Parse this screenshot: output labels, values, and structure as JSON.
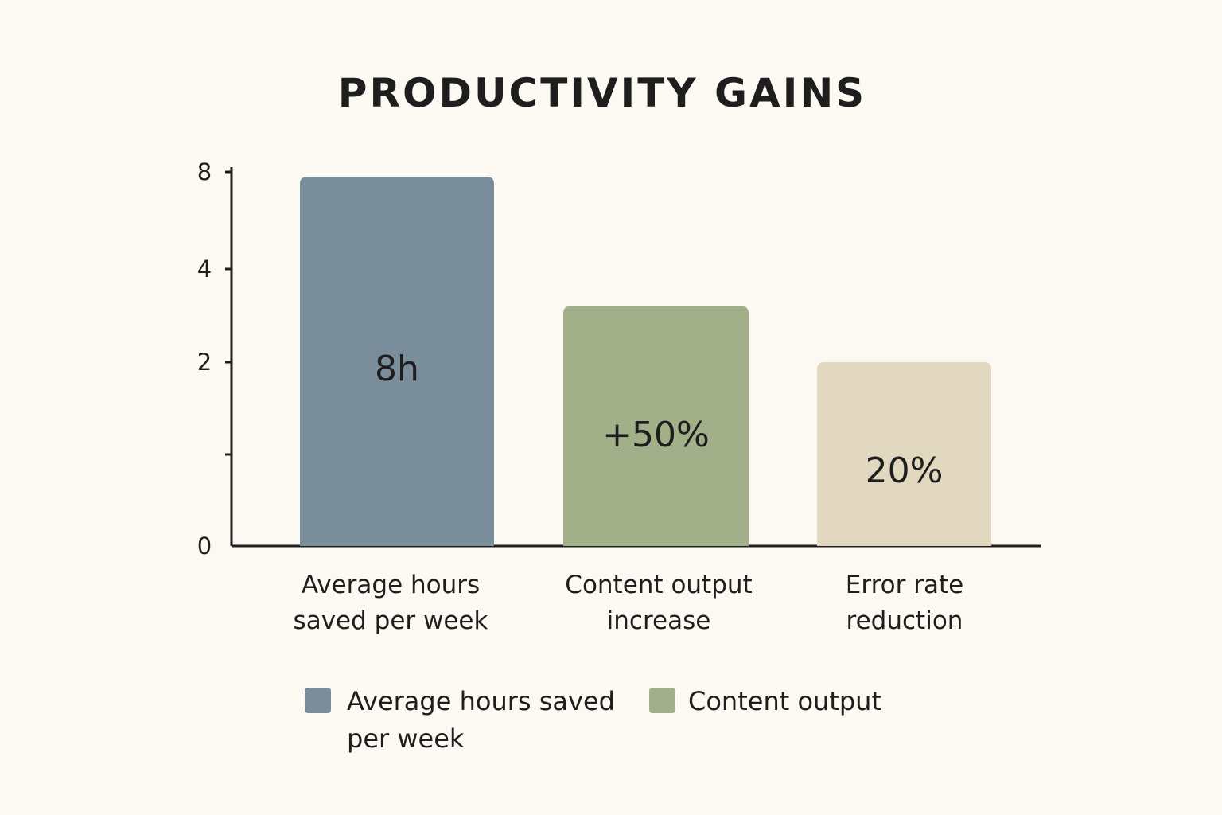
{
  "chart_data": {
    "type": "bar",
    "title": "PRODUCTIVITY GAINS",
    "xlabel": "",
    "ylabel": "",
    "categories": [
      [
        "Average hours",
        "saved per week"
      ],
      [
        "Content output",
        "increase"
      ],
      [
        "Error rate",
        "reduction"
      ]
    ],
    "values": [
      7.8,
      3.2,
      2.0
    ],
    "data_labels": [
      "8h",
      "+50%",
      "20%"
    ],
    "bar_colors": [
      "#7a8d9b",
      "#a2b08a",
      "#e2d8c0"
    ],
    "y_ticks": [
      {
        "value": 0,
        "label": "0"
      },
      {
        "value": 1,
        "label": ""
      },
      {
        "value": 2,
        "label": "2"
      },
      {
        "value": 4,
        "label": "4"
      },
      {
        "value": 8,
        "label": "8"
      }
    ],
    "y_scale_note": "non-linear axis: ticks 0, (unlabeled), 2, 4, 8",
    "grid": false,
    "legend": {
      "placement": "bottom",
      "entries": [
        {
          "lines": [
            "Average hours saved",
            "per week"
          ],
          "color": "#7a8d9b"
        },
        {
          "lines": [
            "Content output"
          ],
          "color": "#a2b08a"
        }
      ]
    },
    "background": "#fcf9f2",
    "axis_color": "#1e1e1e"
  }
}
